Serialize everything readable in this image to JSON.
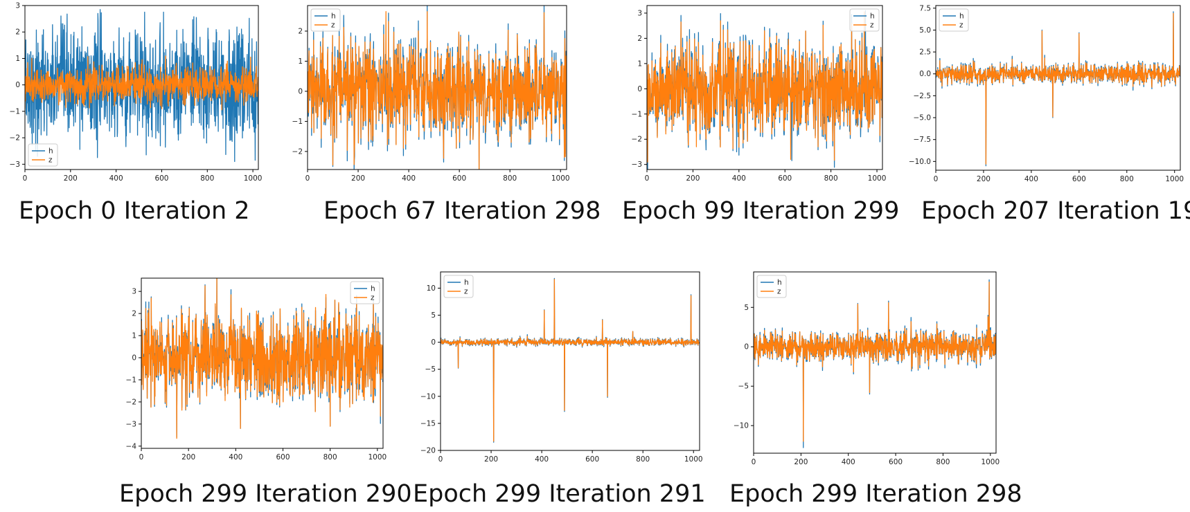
{
  "colors": {
    "h": "#1f77b4",
    "z": "#ff7f0e"
  },
  "chart_data": [
    {
      "type": "line",
      "caption": "Epoch 0 Iteration 2",
      "xlim": [
        0,
        1024
      ],
      "ylim": [
        -3.2,
        3.0
      ],
      "xticks": [
        "0",
        "200",
        "400",
        "600",
        "800",
        "1000"
      ],
      "yticks": [
        "-3",
        "-2",
        "-1",
        "0",
        "1",
        "2",
        "3"
      ],
      "ytick_values": [
        -3,
        -2,
        -1,
        0,
        1,
        2,
        3
      ],
      "legend_loc": "lower-left",
      "grid": false,
      "series": [
        {
          "name": "h",
          "n": 1024,
          "std": 1.0,
          "spikes": [
            [
              330,
              2.85
            ],
            [
              525,
              2.75
            ],
            [
              608,
              2.75
            ],
            [
              1010,
              -2.85
            ],
            [
              920,
              -2.9
            ],
            [
              55,
              -2.7
            ],
            [
              250,
              2.2
            ]
          ]
        },
        {
          "name": "z",
          "n": 1024,
          "std": 0.33,
          "spikes": [
            [
              30,
              1.0
            ],
            [
              990,
              1.05
            ],
            [
              600,
              -0.9
            ]
          ]
        }
      ]
    },
    {
      "type": "line",
      "caption": "Epoch 67 Iteration 298",
      "xlim": [
        0,
        1024
      ],
      "ylim": [
        -2.6,
        2.85
      ],
      "xticks": [
        "0",
        "200",
        "400",
        "600",
        "800",
        "1000"
      ],
      "yticks": [
        "-2",
        "-1",
        "0",
        "1",
        "2"
      ],
      "ytick_values": [
        -2,
        -1,
        0,
        1,
        2
      ],
      "legend_loc": "upper-left",
      "grid": false,
      "series": [
        {
          "name": "h",
          "n": 1024,
          "std": 0.85,
          "spikes": [
            [
              1015,
              -2.3
            ],
            [
              100,
              -2.5
            ],
            [
              320,
              2.6
            ]
          ]
        },
        {
          "name": "z",
          "n": 1024,
          "std": 0.8,
          "spikes": [
            [
              310,
              2.65
            ],
            [
              100,
              -2.45
            ],
            [
              1015,
              -2.2
            ]
          ]
        }
      ]
    },
    {
      "type": "line",
      "caption": "Epoch 99 Iteration 299",
      "xlim": [
        0,
        1024
      ],
      "ylim": [
        -3.2,
        3.3
      ],
      "xticks": [
        "0",
        "200",
        "400",
        "600",
        "800",
        "1000"
      ],
      "yticks": [
        "-3",
        "-2",
        "-1",
        "0",
        "1",
        "2",
        "3"
      ],
      "ytick_values": [
        -3,
        -2,
        -1,
        0,
        1,
        2,
        3
      ],
      "legend_loc": "upper-right",
      "grid": false,
      "series": [
        {
          "name": "h",
          "n": 1024,
          "std": 0.95,
          "spikes": [
            [
              950,
              3.1
            ],
            [
              630,
              -2.85
            ],
            [
              390,
              -2.5
            ]
          ]
        },
        {
          "name": "z",
          "n": 1024,
          "std": 0.9,
          "spikes": [
            [
              945,
              3.05
            ],
            [
              625,
              -2.8
            ],
            [
              215,
              -2.3
            ]
          ]
        }
      ]
    },
    {
      "type": "line",
      "caption": "Epoch 207 Iteration 19",
      "xlim": [
        0,
        1024
      ],
      "ylim": [
        -11.0,
        7.8
      ],
      "xticks": [
        "0",
        "200",
        "400",
        "600",
        "800",
        "1000"
      ],
      "yticks": [
        "-10.0",
        "-7.5",
        "-5.0",
        "-2.5",
        "0.0",
        "2.5",
        "5.0",
        "7.5"
      ],
      "ytick_values": [
        -10,
        -7.5,
        -5,
        -2.5,
        0,
        2.5,
        5,
        7.5
      ],
      "legend_loc": "upper-left",
      "grid": false,
      "series": [
        {
          "name": "h",
          "n": 1024,
          "std": 0.6,
          "spikes": [
            [
              210,
              -10.5
            ],
            [
              995,
              7.1
            ],
            [
              445,
              5.0
            ],
            [
              600,
              4.7
            ],
            [
              490,
              -5.0
            ]
          ]
        },
        {
          "name": "z",
          "n": 1024,
          "std": 0.55,
          "spikes": [
            [
              210,
              -10.3
            ],
            [
              995,
              6.9
            ],
            [
              445,
              4.9
            ],
            [
              600,
              4.6
            ],
            [
              490,
              -4.9
            ]
          ]
        }
      ]
    },
    {
      "type": "line",
      "caption": "Epoch 299 Iteration 290",
      "xlim": [
        0,
        1024
      ],
      "ylim": [
        -4.1,
        3.6
      ],
      "xticks": [
        "0",
        "200",
        "400",
        "600",
        "800",
        "1000"
      ],
      "yticks": [
        "-4",
        "-3",
        "-2",
        "-1",
        "0",
        "1",
        "2",
        "3"
      ],
      "ytick_values": [
        -4,
        -3,
        -2,
        -1,
        0,
        1,
        2,
        3
      ],
      "legend_loc": "upper-right",
      "grid": false,
      "series": [
        {
          "name": "h",
          "n": 1024,
          "std": 1.0,
          "spikes": [
            [
              150,
              -3.6
            ],
            [
              270,
              3.3
            ],
            [
              420,
              -3.2
            ],
            [
              800,
              -3.1
            ]
          ]
        },
        {
          "name": "z",
          "n": 1024,
          "std": 1.0,
          "spikes": [
            [
              150,
              -3.65
            ],
            [
              270,
              3.25
            ],
            [
              420,
              -3.2
            ],
            [
              800,
              -3.1
            ]
          ]
        }
      ]
    },
    {
      "type": "line",
      "caption": "Epoch 299 Iteration 291",
      "xlim": [
        0,
        1024
      ],
      "ylim": [
        -20.0,
        13.0
      ],
      "xticks": [
        "0",
        "200",
        "400",
        "600",
        "800",
        "1000"
      ],
      "yticks": [
        "-20",
        "-15",
        "-10",
        "-5",
        "0",
        "5",
        "10"
      ],
      "ytick_values": [
        -20,
        -15,
        -10,
        -5,
        0,
        5,
        10
      ],
      "legend_loc": "upper-left",
      "grid": false,
      "series": [
        {
          "name": "h",
          "n": 1024,
          "std": 0.35,
          "spikes": [
            [
              210,
              -18.5
            ],
            [
              450,
              11.8
            ],
            [
              490,
              -12.8
            ],
            [
              660,
              -10.2
            ],
            [
              410,
              6.0
            ],
            [
              990,
              8.8
            ],
            [
              70,
              -4.8
            ],
            [
              640,
              4.2
            ],
            [
              760,
              2.0
            ]
          ]
        },
        {
          "name": "z",
          "n": 1024,
          "std": 0.3,
          "spikes": [
            [
              210,
              -18.3
            ],
            [
              450,
              11.6
            ],
            [
              490,
              -12.6
            ],
            [
              660,
              -10.0
            ],
            [
              410,
              5.9
            ],
            [
              990,
              8.6
            ],
            [
              70,
              -4.7
            ],
            [
              640,
              4.1
            ],
            [
              760,
              2.0
            ]
          ]
        }
      ]
    },
    {
      "type": "line",
      "caption": "Epoch 299 Iteration 298",
      "xlim": [
        0,
        1024
      ],
      "ylim": [
        -13.5,
        9.5
      ],
      "xticks": [
        "0",
        "200",
        "400",
        "600",
        "800",
        "1000"
      ],
      "yticks": [
        "-10",
        "-5",
        "0",
        "5"
      ],
      "ytick_values": [
        -10,
        -5,
        0,
        5
      ],
      "legend_loc": "upper-left",
      "grid": false,
      "series": [
        {
          "name": "h",
          "n": 1024,
          "std": 1.0,
          "spikes": [
            [
              210,
              -12.8
            ],
            [
              995,
              8.5
            ],
            [
              440,
              5.5
            ],
            [
              570,
              5.8
            ],
            [
              490,
              -6.0
            ],
            [
              990,
              4.0
            ]
          ]
        },
        {
          "name": "z",
          "n": 1024,
          "std": 0.95,
          "spikes": [
            [
              210,
              -12.0
            ],
            [
              995,
              8.2
            ],
            [
              440,
              5.4
            ],
            [
              570,
              5.6
            ],
            [
              490,
              -5.8
            ],
            [
              990,
              3.8
            ]
          ]
        }
      ]
    }
  ]
}
